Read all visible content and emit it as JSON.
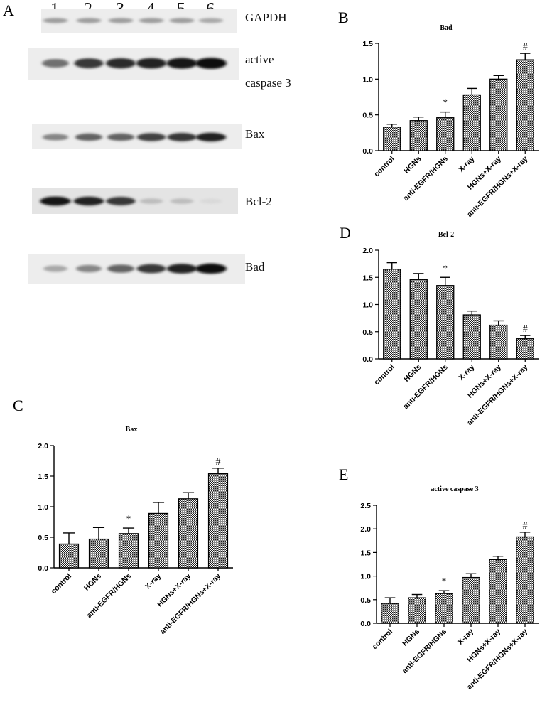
{
  "western_blot": {
    "panel_letter": "A",
    "lanes": [
      "1",
      "2",
      "3",
      "4",
      "5",
      "6"
    ],
    "proteins": [
      {
        "label": "GAPDH",
        "intensities": [
          0.35,
          0.35,
          0.35,
          0.35,
          0.35,
          0.3
        ]
      },
      {
        "label": "active",
        "label2": "caspase 3",
        "intensities": [
          0.55,
          0.8,
          0.85,
          0.9,
          0.95,
          1.0
        ]
      },
      {
        "label": "Bax",
        "intensities": [
          0.45,
          0.6,
          0.6,
          0.75,
          0.8,
          0.9
        ]
      },
      {
        "label": "Bcl-2",
        "intensities": [
          0.95,
          0.9,
          0.8,
          0.2,
          0.2,
          0.08
        ]
      },
      {
        "label": "Bad",
        "intensities": [
          0.3,
          0.45,
          0.6,
          0.8,
          0.9,
          1.0
        ]
      }
    ]
  },
  "chart_data": [
    {
      "panel": "B",
      "type": "bar",
      "title": "Bad",
      "categories": [
        "control",
        "HGNs",
        "anti-EGFR/HGNs",
        "X-ray",
        "HGNs+X-ray",
        "anti-EGFR/HGNs+X-ray"
      ],
      "values": [
        0.33,
        0.42,
        0.46,
        0.78,
        1.0,
        1.27
      ],
      "errors": [
        0.04,
        0.05,
        0.08,
        0.09,
        0.05,
        0.09
      ],
      "annotations": [
        "",
        "",
        "*",
        "",
        "",
        "#"
      ],
      "ylim": [
        0,
        1.5
      ],
      "yticks": [
        "0.0",
        "0.5",
        "1.0",
        "1.5"
      ],
      "xlabel": "",
      "ylabel": ""
    },
    {
      "panel": "D",
      "type": "bar",
      "title": "Bcl-2",
      "categories": [
        "control",
        "HGNs",
        "anti-EGFR/HGNs",
        "X-ray",
        "HGNs+X-ray",
        "anti-EGFR/HGNs+X-ray"
      ],
      "values": [
        1.65,
        1.46,
        1.35,
        0.81,
        0.62,
        0.37
      ],
      "errors": [
        0.12,
        0.11,
        0.15,
        0.07,
        0.08,
        0.06
      ],
      "annotations": [
        "",
        "",
        "*",
        "",
        "",
        "#"
      ],
      "ylim": [
        0,
        2.0
      ],
      "yticks": [
        "0.0",
        "0.5",
        "1.0",
        "1.5",
        "2.0"
      ],
      "xlabel": "",
      "ylabel": ""
    },
    {
      "panel": "C",
      "type": "bar",
      "title": "Bax",
      "categories": [
        "control",
        "HGNs",
        "anti-EGFR/HGNs",
        "X-ray",
        "HGNs+X-ray",
        "anti-EGFR/HGNs+X-ray"
      ],
      "values": [
        0.39,
        0.47,
        0.56,
        0.89,
        1.13,
        1.54
      ],
      "errors": [
        0.18,
        0.19,
        0.09,
        0.18,
        0.1,
        0.09
      ],
      "annotations": [
        "",
        "",
        "*",
        "",
        "",
        "#"
      ],
      "ylim": [
        0,
        2.0
      ],
      "yticks": [
        "0.0",
        "0.5",
        "1.0",
        "1.5",
        "2.0"
      ],
      "xlabel": "",
      "ylabel": ""
    },
    {
      "panel": "E",
      "type": "bar",
      "title": "active caspase 3",
      "categories": [
        "control",
        "HGNs",
        "anti-EGFR/HGNs",
        "X-ray",
        "HGNs+X-ray",
        "anti-EGFR/HGNs+X-ray"
      ],
      "values": [
        0.42,
        0.54,
        0.63,
        0.97,
        1.35,
        1.83
      ],
      "errors": [
        0.12,
        0.07,
        0.06,
        0.08,
        0.07,
        0.1
      ],
      "annotations": [
        "",
        "",
        "*",
        "",
        "",
        "#"
      ],
      "ylim": [
        0,
        2.5
      ],
      "yticks": [
        "0.0",
        "0.5",
        "1.0",
        "1.5",
        "2.0",
        "2.5"
      ],
      "xlabel": "",
      "ylabel": ""
    }
  ]
}
